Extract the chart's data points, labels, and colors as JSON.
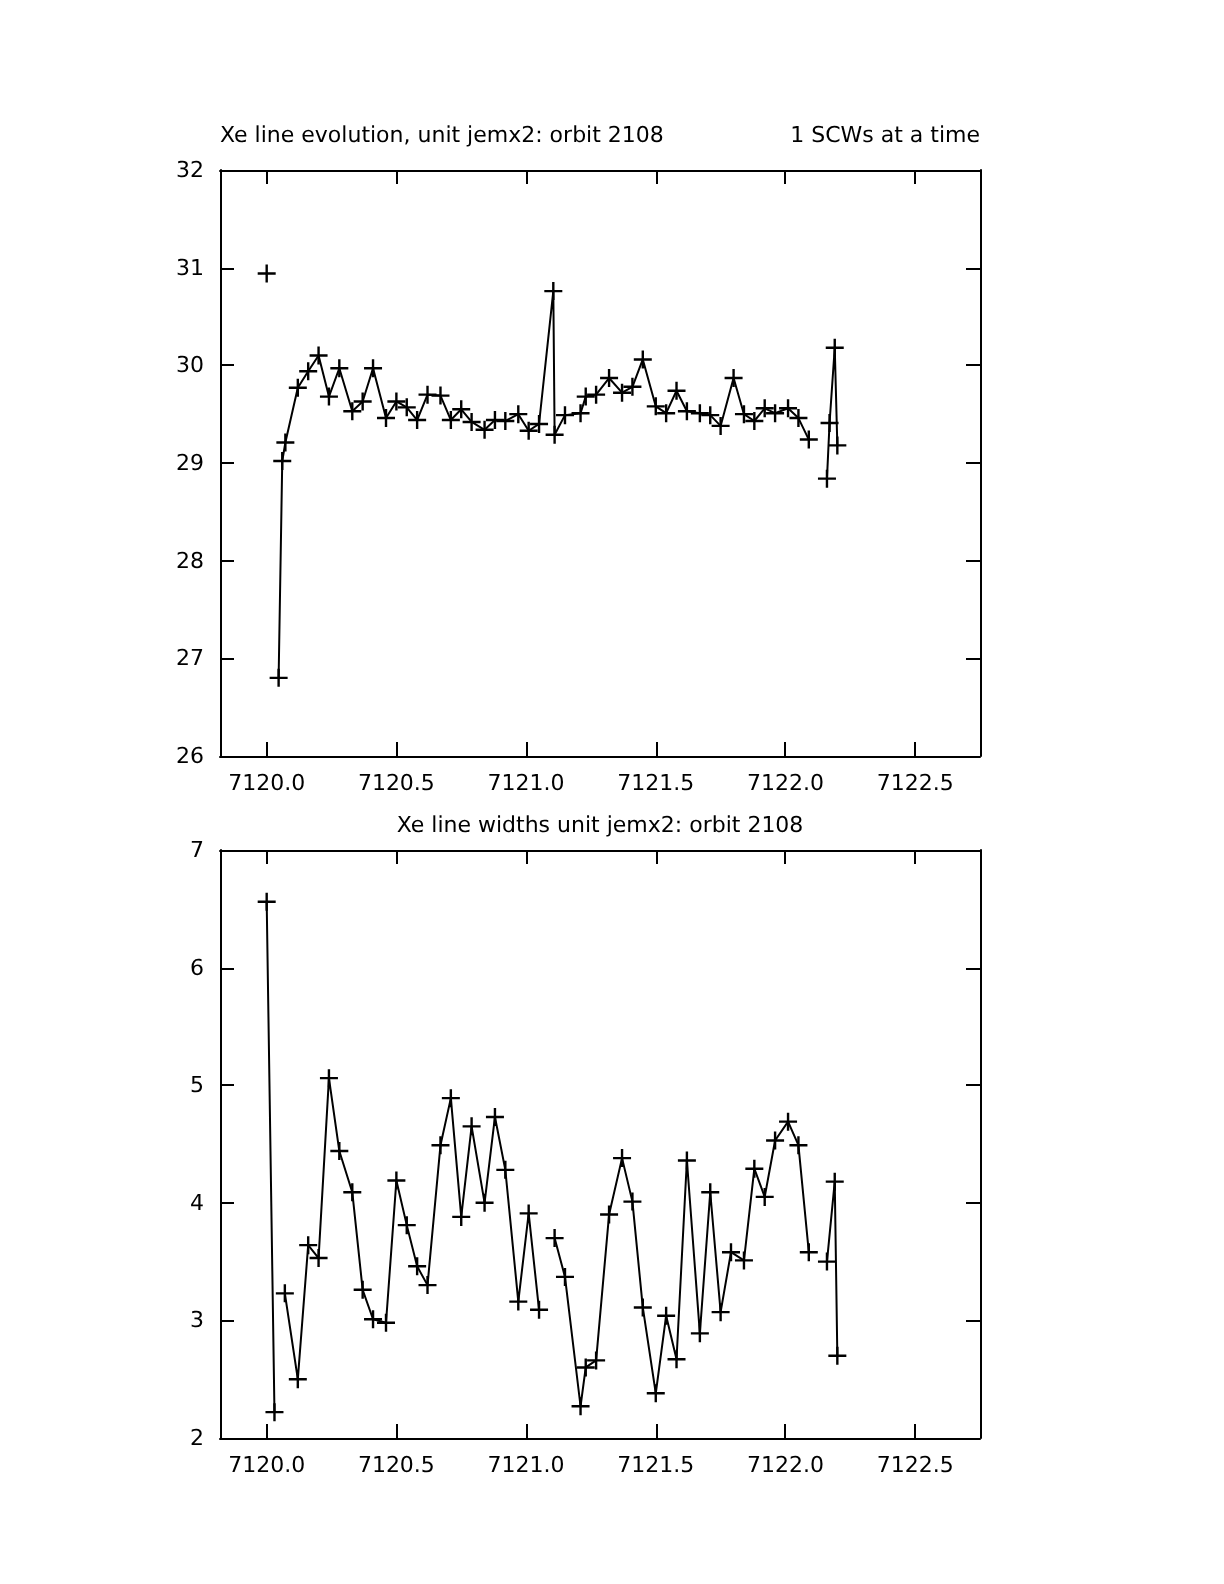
{
  "chart_data": [
    {
      "type": "line",
      "title": "Xe line evolution, unit jemx2: orbit 2108",
      "annotations": [
        "1 SCWs at a time"
      ],
      "marker": "cross",
      "line_style": "solid",
      "xlim": [
        7119.82,
        7122.75
      ],
      "ylim": [
        26,
        32
      ],
      "xticks": [
        {
          "value": 7120,
          "label": "7120.0"
        },
        {
          "value": 7120.5,
          "label": "7120.5"
        },
        {
          "value": 7121,
          "label": "7121.0"
        },
        {
          "value": 7121.5,
          "label": "7121.5"
        },
        {
          "value": 7122,
          "label": "7122.0"
        },
        {
          "value": 7122.5,
          "label": "7122.5"
        }
      ],
      "yticks": [
        26,
        27,
        28,
        29,
        30,
        31,
        32
      ],
      "series": [
        {
          "color": "#000000",
          "x": [
            7120.0,
            7120.02,
            7120.046,
            7120.06,
            7120.072,
            7120.12,
            7120.16,
            7120.2,
            7120.24,
            7120.28,
            7120.33,
            7120.37,
            7120.41,
            7120.46,
            7120.5,
            7120.54,
            7120.58,
            7120.62,
            7120.67,
            7120.71,
            7120.75,
            7120.79,
            7120.84,
            7120.88,
            7120.92,
            7120.97,
            7121.01,
            7121.05,
            7121.105,
            7121.11,
            7121.15,
            7121.21,
            7121.23,
            7121.27,
            7121.32,
            7121.37,
            7121.41,
            7121.45,
            7121.5,
            7121.54,
            7121.58,
            7121.62,
            7121.67,
            7121.71,
            7121.75,
            7121.8,
            7121.84,
            7121.88,
            7121.92,
            7121.96,
            7122.01,
            7122.05,
            7122.09,
            7122.12,
            7122.16,
            7122.17,
            7122.19,
            7122.2
          ],
          "values": [
            30.94,
            null,
            26.8,
            29.02,
            29.21,
            29.77,
            29.94,
            30.1,
            29.68,
            29.97,
            29.53,
            29.63,
            29.97,
            29.46,
            29.63,
            29.57,
            29.44,
            29.7,
            29.69,
            29.44,
            29.55,
            29.42,
            29.34,
            29.44,
            29.43,
            29.5,
            29.33,
            29.4,
            30.76,
            29.29,
            29.49,
            29.51,
            29.68,
            29.7,
            29.87,
            29.72,
            29.78,
            30.06,
            29.58,
            29.51,
            29.74,
            29.53,
            29.51,
            29.49,
            29.38,
            29.87,
            29.5,
            29.43,
            29.56,
            29.51,
            29.56,
            29.46,
            29.24,
            null,
            28.84,
            29.41,
            30.18,
            29.18
          ]
        }
      ]
    },
    {
      "type": "line",
      "title": "Xe line widths unit jemx2: orbit 2108",
      "marker": "cross",
      "line_style": "solid",
      "xlim": [
        7119.82,
        7122.75
      ],
      "ylim": [
        2,
        7
      ],
      "xticks": [
        {
          "value": 7120,
          "label": "7120.0"
        },
        {
          "value": 7120.5,
          "label": "7120.5"
        },
        {
          "value": 7121,
          "label": "7121.0"
        },
        {
          "value": 7121.5,
          "label": "7121.5"
        },
        {
          "value": 7122,
          "label": "7122.0"
        },
        {
          "value": 7122.5,
          "label": "7122.5"
        }
      ],
      "yticks": [
        2,
        3,
        4,
        5,
        6,
        7
      ],
      "series": [
        {
          "color": "#000000",
          "x": [
            7120.0,
            7120.03,
            7120.05,
            7120.07,
            7120.12,
            7120.16,
            7120.2,
            7120.24,
            7120.28,
            7120.33,
            7120.37,
            7120.41,
            7120.46,
            7120.5,
            7120.54,
            7120.58,
            7120.62,
            7120.67,
            7120.71,
            7120.75,
            7120.79,
            7120.84,
            7120.88,
            7120.92,
            7120.97,
            7121.01,
            7121.05,
            7121.08,
            7121.11,
            7121.15,
            7121.21,
            7121.23,
            7121.27,
            7121.32,
            7121.37,
            7121.41,
            7121.45,
            7121.5,
            7121.54,
            7121.58,
            7121.62,
            7121.67,
            7121.71,
            7121.75,
            7121.79,
            7121.84,
            7121.88,
            7121.92,
            7121.96,
            7122.01,
            7122.05,
            7122.09,
            7122.12,
            7122.16,
            7122.19,
            7122.2
          ],
          "values": [
            6.56,
            2.22,
            null,
            3.23,
            2.5,
            3.64,
            3.53,
            5.06,
            4.44,
            4.09,
            3.26,
            3.01,
            2.98,
            4.19,
            3.81,
            3.46,
            3.3,
            4.49,
            4.89,
            3.88,
            4.65,
            4.0,
            4.73,
            4.28,
            3.16,
            3.91,
            3.09,
            null,
            3.7,
            3.37,
            2.27,
            2.6,
            2.66,
            3.9,
            4.38,
            4.01,
            3.11,
            2.38,
            3.04,
            2.67,
            4.36,
            2.89,
            4.09,
            3.07,
            3.58,
            3.51,
            4.29,
            4.05,
            4.53,
            4.69,
            4.49,
            3.58,
            null,
            3.5,
            4.18,
            2.7
          ]
        }
      ]
    }
  ]
}
